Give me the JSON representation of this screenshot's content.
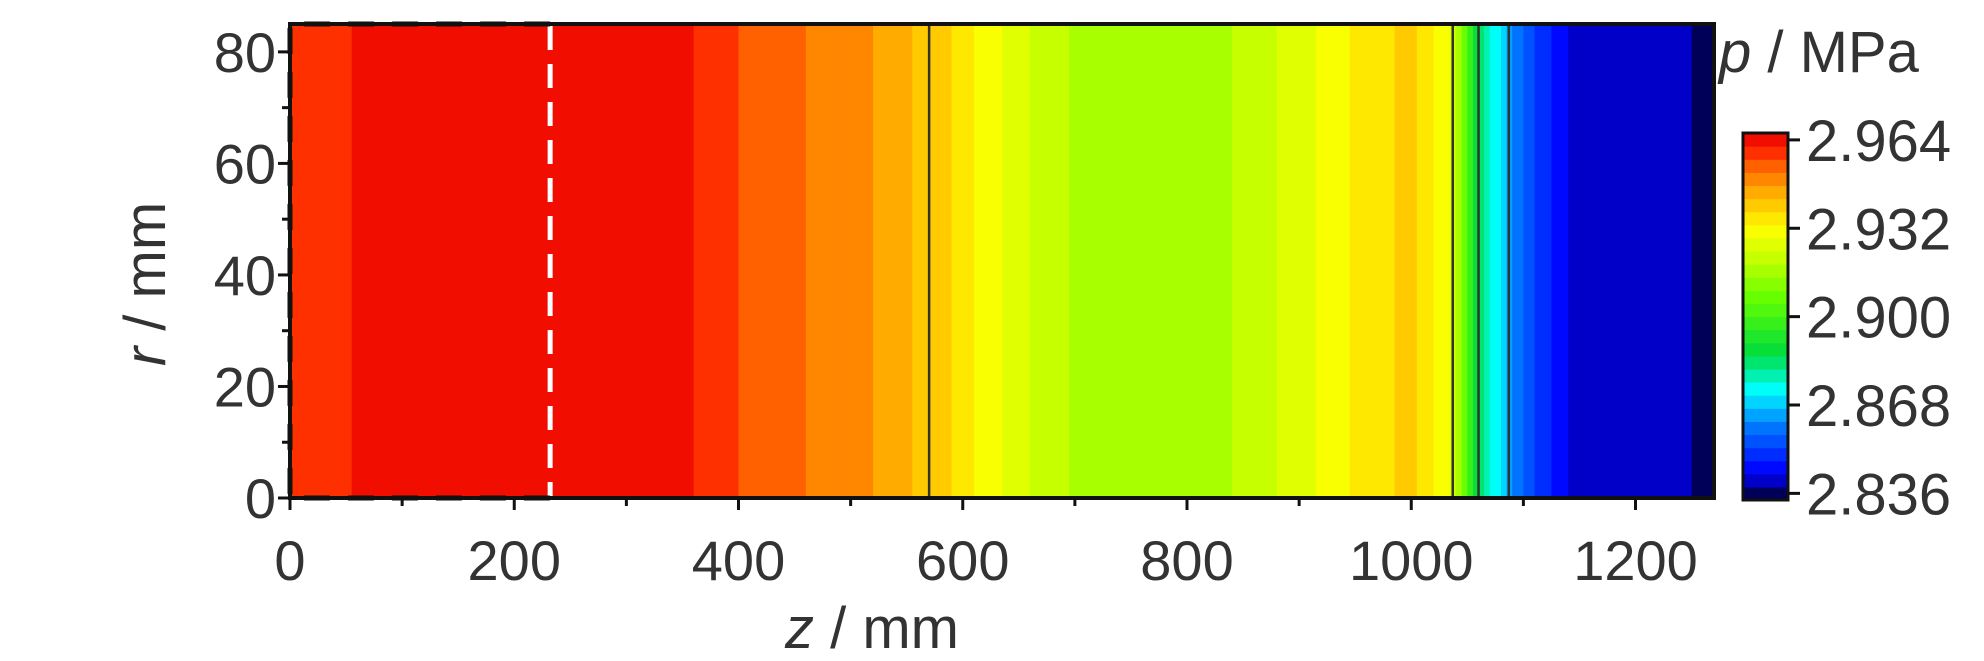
{
  "chart_data": {
    "type": "heatmap",
    "title": "",
    "xlabel": {
      "italic": "z",
      "rest": " / mm"
    },
    "ylabel": {
      "italic": "r",
      "rest": " / mm"
    },
    "xlim": [
      0,
      1270
    ],
    "ylim": [
      0,
      85
    ],
    "x_ticks": [
      0,
      200,
      400,
      600,
      800,
      1000,
      1200
    ],
    "x_tick_labels": [
      "0",
      "200",
      "400",
      "600",
      "800",
      "1000",
      "1200"
    ],
    "y_ticks": [
      0,
      20,
      40,
      60,
      80
    ],
    "y_tick_labels": [
      "0",
      "20",
      "40",
      "60",
      "80"
    ],
    "colorbar": {
      "label": {
        "italic": "p",
        "rest": " / MPa"
      },
      "min": 2.8336,
      "max": 2.9665,
      "ticks": [
        2.836,
        2.868,
        2.9,
        2.932,
        2.964
      ],
      "tick_labels": [
        "2.836",
        "2.868",
        "2.900",
        "2.932",
        "2.964"
      ]
    },
    "pressure_profile_along_z": {
      "z": [
        0,
        60,
        190,
        230,
        300,
        340,
        400,
        450,
        500,
        540,
        570,
        600,
        650,
        700,
        800,
        850,
        900,
        950,
        1000,
        1035,
        1060,
        1085,
        1110,
        1150,
        1270
      ],
      "p": [
        2.96,
        2.962,
        2.965,
        2.966,
        2.963,
        2.964,
        2.957,
        2.953,
        2.95,
        2.945,
        2.941,
        2.936,
        2.925,
        2.918,
        2.916,
        2.92,
        2.926,
        2.934,
        2.94,
        2.928,
        2.885,
        2.866,
        2.852,
        2.84,
        2.838
      ]
    },
    "contour_lines_z": [
      570,
      1037,
      1060,
      1087
    ],
    "region_boundary_z": 232,
    "dashed_region": {
      "z": [
        0,
        232
      ],
      "r": [
        0,
        85
      ]
    }
  }
}
